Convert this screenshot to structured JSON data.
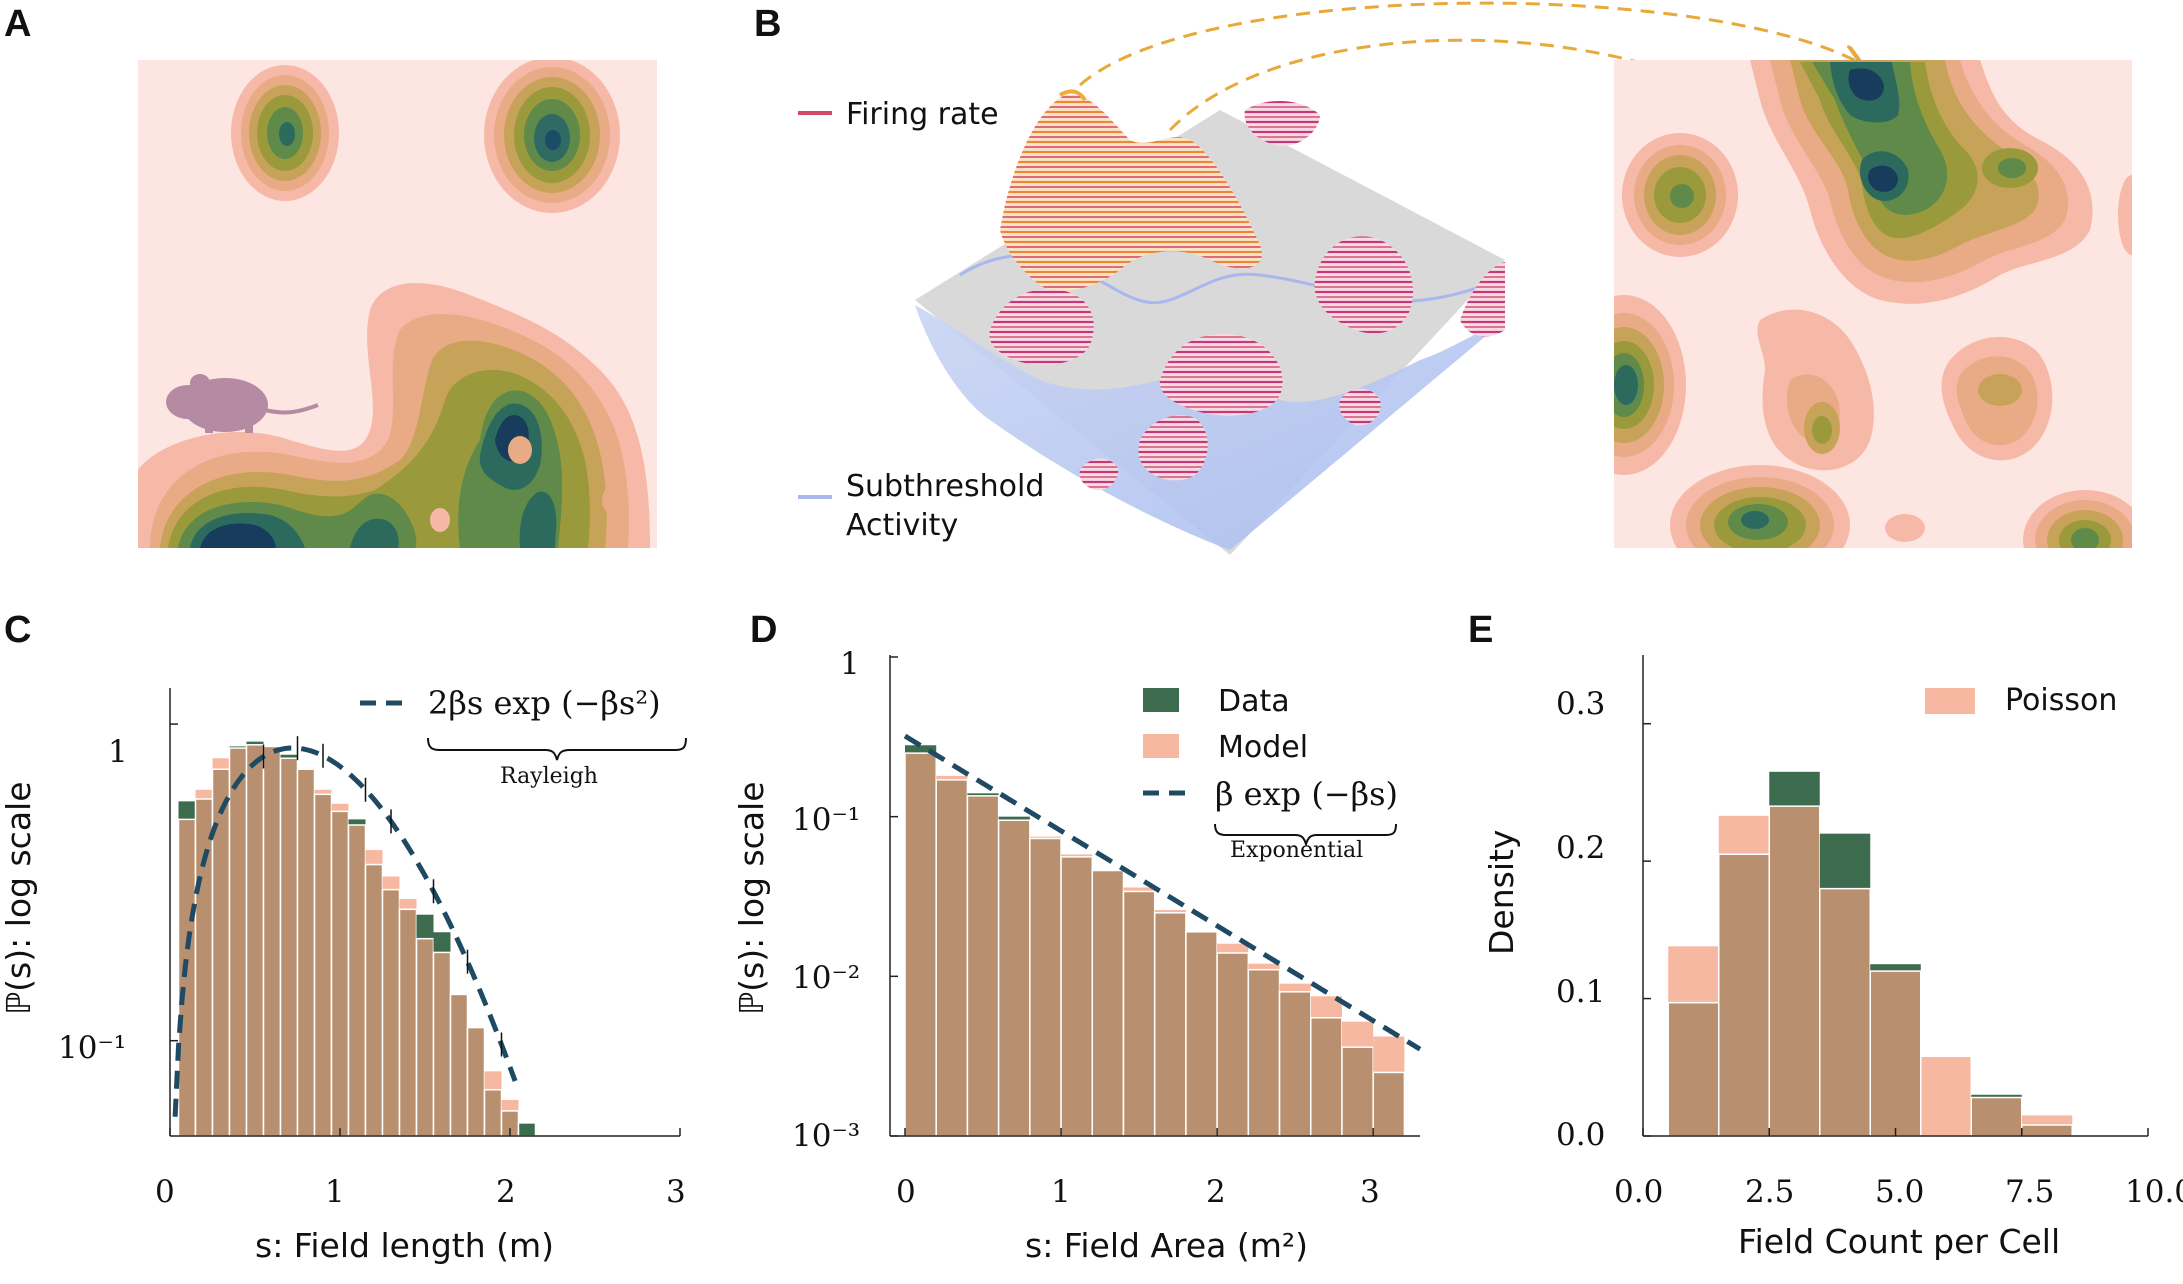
{
  "panels": {
    "A": {
      "label": "A"
    },
    "B": {
      "label": "B",
      "legend": {
        "firing": "Firing rate",
        "sub_line1": "Subthreshold",
        "sub_line2": "Activity"
      }
    },
    "C": {
      "label": "C"
    },
    "D": {
      "label": "D"
    },
    "E": {
      "label": "E"
    }
  },
  "colors": {
    "data": "#3c6b4e",
    "model": "#f7b8a2",
    "overlap": "#b8906f",
    "fit_line": "#1f4a63",
    "field_bg": "#fde6e2",
    "arrow": "#e8a93a"
  },
  "chart_data": [
    {
      "id": "C",
      "type": "bar",
      "scale": "log",
      "xlabel": "s: Field length (m)",
      "ylabel": "ℙ(s): log scale",
      "xlim": [
        0,
        3
      ],
      "ylim": [
        0.05,
        1.3
      ],
      "xticks": [
        "0",
        "1",
        "2",
        "3"
      ],
      "yticks": [
        {
          "value": 1,
          "label": "1"
        },
        {
          "value": 0.1,
          "label": "10⁻¹"
        }
      ],
      "bin_width": 0.1,
      "bin_start": 0.1,
      "series": [
        {
          "name": "Data",
          "values": [
            0.57,
            0.58,
            0.72,
            0.85,
            0.88,
            0.85,
            0.8,
            0.72,
            0.6,
            0.53,
            0.5,
            0.36,
            0.3,
            0.26,
            0.25,
            0.22,
            0.14,
            0.11,
            0.07,
            0.06,
            0.055,
            0.0
          ]
        },
        {
          "name": "Model",
          "values": [
            0.5,
            0.62,
            0.78,
            0.84,
            0.86,
            0.85,
            0.78,
            0.72,
            0.62,
            0.56,
            0.48,
            0.4,
            0.33,
            0.28,
            0.21,
            0.19,
            0.14,
            0.11,
            0.08,
            0.065,
            0.0,
            0.0
          ]
        }
      ],
      "fit": {
        "name": "Rayleigh",
        "label": "2βs exp (−βs²)",
        "under": "Rayleigh"
      }
    },
    {
      "id": "D",
      "type": "bar",
      "scale": "log",
      "xlabel": "s: Field Area (m²)",
      "ylabel": "ℙ(s): log scale",
      "xlim": [
        0,
        3.3
      ],
      "ylim": [
        0.001,
        1
      ],
      "xticks": [
        "0",
        "1",
        "2",
        "3"
      ],
      "yticks": [
        {
          "value": 1,
          "label": "1"
        },
        {
          "value": 0.1,
          "label": "10⁻¹"
        },
        {
          "value": 0.01,
          "label": "10⁻²"
        },
        {
          "value": 0.001,
          "label": "10⁻³"
        }
      ],
      "legend": [
        "Data",
        "Model"
      ],
      "bin_width": 0.2,
      "bin_start": 0.1,
      "series": [
        {
          "name": "Data",
          "values": [
            0.28,
            0.17,
            0.14,
            0.1,
            0.073,
            0.056,
            0.046,
            0.034,
            0.025,
            0.019,
            0.014,
            0.011,
            0.008,
            0.0055,
            0.0036,
            0.0025
          ]
        },
        {
          "name": "Model",
          "values": [
            0.25,
            0.18,
            0.135,
            0.095,
            0.075,
            0.058,
            0.046,
            0.036,
            0.026,
            0.019,
            0.016,
            0.012,
            0.009,
            0.0075,
            0.0052,
            0.0042
          ]
        }
      ],
      "fit": {
        "name": "Exponential",
        "label": "β exp (−βs)",
        "under": "Exponential",
        "x": [
          0,
          3.3
        ],
        "y": [
          0.32,
          0.0035
        ]
      }
    },
    {
      "id": "E",
      "type": "bar",
      "scale": "linear",
      "xlabel": "Field Count per Cell",
      "ylabel": "Density",
      "xlim": [
        0,
        10
      ],
      "ylim": [
        0,
        0.35
      ],
      "xticks": [
        "0.0",
        "2.5",
        "5.0",
        "7.5",
        "10.0"
      ],
      "yticks": [
        {
          "value": 0,
          "label": "0.0"
        },
        {
          "value": 0.1,
          "label": "0.1"
        },
        {
          "value": 0.2,
          "label": "0.2"
        },
        {
          "value": 0.3,
          "label": "0.3"
        }
      ],
      "legend": [
        "Poisson"
      ],
      "bin_width": 1,
      "bin_start": 0.5,
      "series": [
        {
          "name": "Data",
          "values": [
            0.097,
            0.205,
            0.265,
            0.22,
            0.125,
            0.0,
            0.03,
            0.008
          ]
        },
        {
          "name": "Poisson",
          "values": [
            0.138,
            0.233,
            0.24,
            0.18,
            0.12,
            0.058,
            0.028,
            0.015
          ]
        }
      ]
    }
  ]
}
